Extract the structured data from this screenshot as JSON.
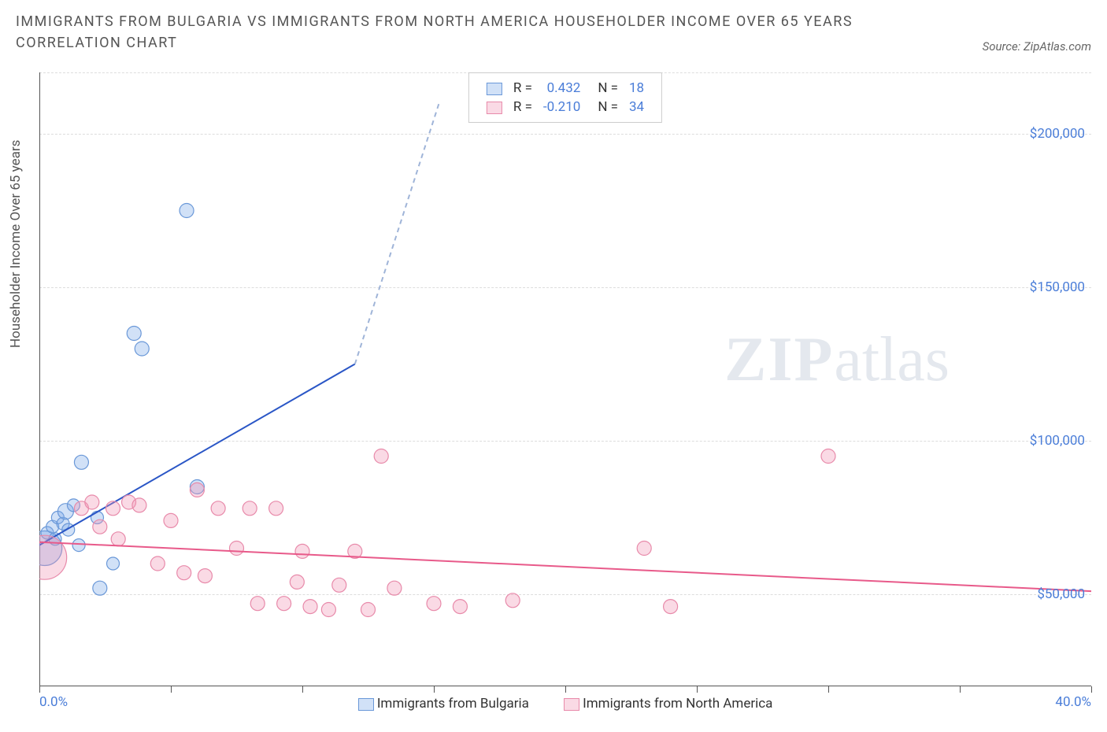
{
  "title": "IMMIGRANTS FROM BULGARIA VS IMMIGRANTS FROM NORTH AMERICA HOUSEHOLDER INCOME OVER 65 YEARS CORRELATION CHART",
  "source": "Source: ZipAtlas.com",
  "watermark_zip": "ZIP",
  "watermark_atlas": "atlas",
  "chart": {
    "type": "scatter",
    "background_color": "#ffffff",
    "grid_color": "#dddddd",
    "axis_color": "#555555",
    "xlim": [
      0,
      40
    ],
    "ylim": [
      20000,
      220000
    ],
    "x_ticks": [
      0,
      10,
      20,
      30,
      40
    ],
    "x_tick_labels": [
      "0.0%",
      "",
      "",
      "",
      "40.0%"
    ],
    "x_tick_marks": [
      0,
      5,
      10,
      15,
      20,
      25,
      30,
      35,
      40
    ],
    "y_ticks": [
      50000,
      100000,
      150000,
      200000
    ],
    "y_tick_labels": [
      "$50,000",
      "$100,000",
      "$150,000",
      "$200,000"
    ],
    "y_axis_label": "Householder Income Over 65 years",
    "tick_color": "#4a7dd8",
    "tick_fontsize": 17,
    "label_fontsize": 17,
    "series": [
      {
        "name": "Immigrants from Bulgaria",
        "fill_color": "rgba(122,168,232,0.35)",
        "stroke_color": "#6a98d8",
        "marker_radius": 8,
        "points": [
          {
            "x": 0.2,
            "y": 65000,
            "r": 22
          },
          {
            "x": 0.3,
            "y": 70000,
            "r": 8
          },
          {
            "x": 0.5,
            "y": 72000,
            "r": 8
          },
          {
            "x": 0.6,
            "y": 68000,
            "r": 8
          },
          {
            "x": 0.7,
            "y": 75000,
            "r": 8
          },
          {
            "x": 0.9,
            "y": 73000,
            "r": 8
          },
          {
            "x": 1.0,
            "y": 77000,
            "r": 10
          },
          {
            "x": 1.1,
            "y": 71000,
            "r": 8
          },
          {
            "x": 1.3,
            "y": 79000,
            "r": 8
          },
          {
            "x": 1.5,
            "y": 66000,
            "r": 8
          },
          {
            "x": 1.6,
            "y": 93000,
            "r": 9
          },
          {
            "x": 2.2,
            "y": 75000,
            "r": 8
          },
          {
            "x": 2.3,
            "y": 52000,
            "r": 9
          },
          {
            "x": 2.8,
            "y": 60000,
            "r": 8
          },
          {
            "x": 3.6,
            "y": 135000,
            "r": 9
          },
          {
            "x": 3.9,
            "y": 130000,
            "r": 9
          },
          {
            "x": 5.6,
            "y": 175000,
            "r": 9
          },
          {
            "x": 6.0,
            "y": 85000,
            "r": 9
          }
        ],
        "trend": {
          "x1": 0,
          "y1": 66000,
          "x2": 12,
          "y2": 125000,
          "dash_to_x": 15.2,
          "dash_to_y": 210000,
          "solid_color": "#2a56c6",
          "dash_color": "#9fb4d8",
          "width": 2
        },
        "R": "0.432",
        "N": "18"
      },
      {
        "name": "Immigrants from North America",
        "fill_color": "rgba(240,150,180,0.35)",
        "stroke_color": "#e88aaa",
        "marker_radius": 9,
        "points": [
          {
            "x": 0.2,
            "y": 62000,
            "r": 28
          },
          {
            "x": 1.6,
            "y": 78000,
            "r": 9
          },
          {
            "x": 2.0,
            "y": 80000,
            "r": 9
          },
          {
            "x": 2.3,
            "y": 72000,
            "r": 9
          },
          {
            "x": 2.8,
            "y": 78000,
            "r": 9
          },
          {
            "x": 3.0,
            "y": 68000,
            "r": 9
          },
          {
            "x": 3.4,
            "y": 80000,
            "r": 9
          },
          {
            "x": 3.8,
            "y": 79000,
            "r": 9
          },
          {
            "x": 4.5,
            "y": 60000,
            "r": 9
          },
          {
            "x": 5.0,
            "y": 74000,
            "r": 9
          },
          {
            "x": 5.5,
            "y": 57000,
            "r": 9
          },
          {
            "x": 6.0,
            "y": 84000,
            "r": 9
          },
          {
            "x": 6.3,
            "y": 56000,
            "r": 9
          },
          {
            "x": 6.8,
            "y": 78000,
            "r": 9
          },
          {
            "x": 7.5,
            "y": 65000,
            "r": 9
          },
          {
            "x": 8.0,
            "y": 78000,
            "r": 9
          },
          {
            "x": 8.3,
            "y": 47000,
            "r": 9
          },
          {
            "x": 9.0,
            "y": 78000,
            "r": 9
          },
          {
            "x": 9.3,
            "y": 47000,
            "r": 9
          },
          {
            "x": 9.8,
            "y": 54000,
            "r": 9
          },
          {
            "x": 10.0,
            "y": 64000,
            "r": 9
          },
          {
            "x": 10.3,
            "y": 46000,
            "r": 9
          },
          {
            "x": 11.0,
            "y": 45000,
            "r": 9
          },
          {
            "x": 11.4,
            "y": 53000,
            "r": 9
          },
          {
            "x": 12.0,
            "y": 64000,
            "r": 9
          },
          {
            "x": 12.5,
            "y": 45000,
            "r": 9
          },
          {
            "x": 13.0,
            "y": 95000,
            "r": 9
          },
          {
            "x": 13.5,
            "y": 52000,
            "r": 9
          },
          {
            "x": 15.0,
            "y": 47000,
            "r": 9
          },
          {
            "x": 16.0,
            "y": 46000,
            "r": 9
          },
          {
            "x": 18.0,
            "y": 48000,
            "r": 9
          },
          {
            "x": 23.0,
            "y": 65000,
            "r": 9
          },
          {
            "x": 24.0,
            "y": 46000,
            "r": 9
          },
          {
            "x": 30.0,
            "y": 95000,
            "r": 9
          }
        ],
        "trend": {
          "x1": 0,
          "y1": 67000,
          "x2": 40,
          "y2": 51000,
          "solid_color": "#e85a8a",
          "width": 2
        },
        "R": "-0.210",
        "N": "34"
      }
    ],
    "legend_top": {
      "R_label": "R =",
      "N_label": "N ="
    },
    "legend_bottom": [
      "Immigrants from Bulgaria",
      "Immigrants from North America"
    ]
  }
}
